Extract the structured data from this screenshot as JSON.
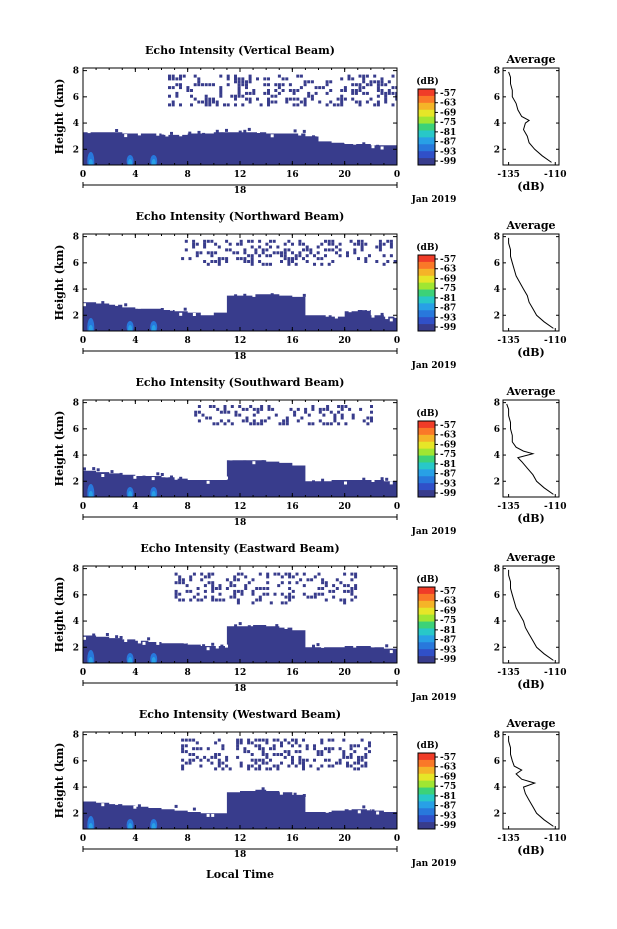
{
  "figure": {
    "date_label": "Jan 2019",
    "xlabel": "Local Time"
  },
  "colorbar": {
    "unit": "(dB)",
    "ticks": [
      "-57",
      "-63",
      "-69",
      "-75",
      "-81",
      "-87",
      "-93",
      "-99"
    ],
    "colors": [
      "#f03c28",
      "#fa7828",
      "#f5b428",
      "#e6e628",
      "#a0e632",
      "#3cd278",
      "#28c8c8",
      "#28a0e6",
      "#2878dc",
      "#3050c8",
      "#383c8c"
    ]
  },
  "chart_data": [
    {
      "type": "heatmap",
      "title": "Echo Intensity (Vertical Beam)",
      "ylabel": "Height (km)",
      "xticks": [
        "0",
        "4",
        "8",
        "12",
        "16",
        "20",
        "0"
      ],
      "xlim": [
        0,
        24
      ],
      "ylim": [
        0.8,
        8.2
      ],
      "yticks": [
        "2",
        "4",
        "6",
        "8"
      ],
      "day_label": "18",
      "layer_top_km": [
        3.3,
        3.3,
        3.3,
        3.2,
        3.2,
        3.2,
        3.1,
        3.1,
        3.2,
        3.2,
        3.3,
        3.3,
        3.3,
        3.3,
        3.2,
        3.2,
        3.2,
        3.0,
        2.6,
        2.5,
        2.4,
        2.4,
        2.3,
        2.3,
        2.3
      ],
      "upper_cloud": {
        "from_hour": 6.5,
        "to_hour": 24,
        "bottom_km": 5.5,
        "top_km": 7.9
      },
      "avg_profile": {
        "title": "Average",
        "xlabel": "(dB)",
        "xticks": [
          "-135",
          "-110"
        ],
        "xlim": [
          -138,
          -108
        ],
        "ylim": [
          0.8,
          8.2
        ],
        "yticks": [
          "2",
          "4",
          "6",
          "8"
        ],
        "heights_km": [
          1.0,
          1.5,
          2.0,
          2.5,
          3.0,
          3.5,
          4.0,
          4.2,
          4.5,
          5.0,
          5.5,
          6.0,
          6.5,
          7.0,
          7.5,
          7.9
        ],
        "values_db": [
          -112,
          -117,
          -121,
          -124,
          -125,
          -127,
          -126,
          -124,
          -128,
          -130,
          -131,
          -133,
          -133,
          -134,
          -134,
          -135
        ]
      }
    },
    {
      "type": "heatmap",
      "title": "Echo Intensity (Northward Beam)",
      "ylabel": "Height (km)",
      "xticks": [
        "0",
        "4",
        "8",
        "12",
        "16",
        "20",
        "0"
      ],
      "xlim": [
        0,
        24
      ],
      "ylim": [
        0.8,
        8.2
      ],
      "yticks": [
        "2",
        "4",
        "6",
        "8"
      ],
      "day_label": "18",
      "layer_top_km": [
        3.0,
        2.9,
        2.8,
        2.6,
        2.5,
        2.5,
        2.4,
        2.3,
        2.2,
        2.0,
        2.2,
        3.5,
        3.5,
        3.6,
        3.6,
        3.5,
        3.4,
        2.0,
        2.0,
        1.9,
        2.3,
        2.4,
        2.0,
        1.9,
        1.9
      ],
      "upper_cloud": {
        "from_hour": 7.5,
        "to_hour": 24,
        "bottom_km": 6.0,
        "top_km": 7.9
      },
      "avg_profile": {
        "title": "Average",
        "xlabel": "(dB)",
        "xticks": [
          "-135",
          "-110"
        ],
        "xlim": [
          -138,
          -108
        ],
        "ylim": [
          0.8,
          8.2
        ],
        "yticks": [
          "2",
          "4",
          "6",
          "8"
        ],
        "heights_km": [
          1.0,
          1.5,
          2.0,
          2.5,
          3.0,
          3.5,
          4.0,
          4.5,
          5.0,
          5.5,
          6.0,
          6.5,
          7.0,
          7.5,
          7.9
        ],
        "values_db": [
          -111,
          -116,
          -120,
          -122,
          -124,
          -125,
          -127,
          -129,
          -131,
          -132,
          -133,
          -134,
          -134,
          -135,
          -135
        ]
      }
    },
    {
      "type": "heatmap",
      "title": "Echo Intensity (Southward Beam)",
      "ylabel": "Height (km)",
      "xticks": [
        "0",
        "4",
        "8",
        "12",
        "16",
        "20",
        "0"
      ],
      "xlim": [
        0,
        24
      ],
      "ylim": [
        0.8,
        8.2
      ],
      "yticks": [
        "2",
        "4",
        "6",
        "8"
      ],
      "day_label": "18",
      "layer_top_km": [
        2.8,
        2.7,
        2.6,
        2.5,
        2.4,
        2.4,
        2.3,
        2.2,
        2.1,
        2.1,
        2.1,
        3.6,
        3.6,
        3.6,
        3.5,
        3.4,
        3.2,
        2.0,
        2.0,
        2.1,
        2.1,
        2.1,
        2.1,
        2.0,
        2.0
      ],
      "upper_cloud": {
        "from_hour": 8.5,
        "to_hour": 22,
        "bottom_km": 6.5,
        "top_km": 7.9
      },
      "avg_profile": {
        "title": "Average",
        "xlabel": "(dB)",
        "xticks": [
          "-135",
          "-110"
        ],
        "xlim": [
          -138,
          -108
        ],
        "ylim": [
          0.8,
          8.2
        ],
        "yticks": [
          "2",
          "4",
          "6",
          "8"
        ],
        "heights_km": [
          1.0,
          1.5,
          2.0,
          2.5,
          3.0,
          3.5,
          3.8,
          4.1,
          4.3,
          4.6,
          5.0,
          5.5,
          6.0,
          6.5,
          7.0,
          7.5,
          7.9
        ],
        "values_db": [
          -111,
          -116,
          -120,
          -122,
          -125,
          -128,
          -130,
          -122,
          -127,
          -131,
          -133,
          -133,
          -134,
          -134,
          -135,
          -135,
          -136
        ]
      }
    },
    {
      "type": "heatmap",
      "title": "Echo Intensity (Eastward Beam)",
      "ylabel": "Height (km)",
      "xticks": [
        "0",
        "4",
        "8",
        "12",
        "16",
        "20",
        "0"
      ],
      "xlim": [
        0,
        24
      ],
      "ylim": [
        0.8,
        8.2
      ],
      "yticks": [
        "2",
        "4",
        "6",
        "8"
      ],
      "day_label": "18",
      "layer_top_km": [
        2.9,
        2.8,
        2.7,
        2.6,
        2.5,
        2.4,
        2.3,
        2.3,
        2.2,
        2.1,
        2.1,
        3.6,
        3.6,
        3.7,
        3.6,
        3.5,
        3.3,
        2.0,
        2.0,
        2.0,
        2.1,
        2.1,
        2.0,
        1.9,
        1.9
      ],
      "upper_cloud": {
        "from_hour": 7.0,
        "to_hour": 21,
        "bottom_km": 5.5,
        "top_km": 7.9
      },
      "avg_profile": {
        "title": "Average",
        "xlabel": "(dB)",
        "xticks": [
          "-135",
          "-110"
        ],
        "xlim": [
          -138,
          -108
        ],
        "ylim": [
          0.8,
          8.2
        ],
        "yticks": [
          "2",
          "4",
          "6",
          "8"
        ],
        "heights_km": [
          1.0,
          1.5,
          2.0,
          2.5,
          3.0,
          3.5,
          4.0,
          4.5,
          5.0,
          5.5,
          6.0,
          6.5,
          7.0,
          7.5,
          7.9
        ],
        "values_db": [
          -111,
          -116,
          -120,
          -122,
          -124,
          -126,
          -127,
          -129,
          -131,
          -132,
          -133,
          -134,
          -134,
          -135,
          -135
        ]
      }
    },
    {
      "type": "heatmap",
      "title": "Echo Intensity (Westward Beam)",
      "ylabel": "Height (km)",
      "xticks": [
        "0",
        "4",
        "8",
        "12",
        "16",
        "20",
        "0"
      ],
      "xlim": [
        0,
        24
      ],
      "ylim": [
        0.8,
        8.2
      ],
      "yticks": [
        "2",
        "4",
        "6",
        "8"
      ],
      "day_label": "18",
      "layer_top_km": [
        2.9,
        2.8,
        2.7,
        2.6,
        2.5,
        2.4,
        2.3,
        2.2,
        2.1,
        2.0,
        2.0,
        3.6,
        3.7,
        3.8,
        3.7,
        3.6,
        3.4,
        2.1,
        2.1,
        2.2,
        2.3,
        2.3,
        2.2,
        2.1,
        2.0
      ],
      "upper_cloud": {
        "from_hour": 7.5,
        "to_hour": 22,
        "bottom_km": 5.5,
        "top_km": 7.9
      },
      "avg_profile": {
        "title": "Average",
        "xlabel": "(dB)",
        "xticks": [
          "-135",
          "-110"
        ],
        "xlim": [
          -138,
          -108
        ],
        "ylim": [
          0.8,
          8.2
        ],
        "yticks": [
          "2",
          "4",
          "6",
          "8"
        ],
        "heights_km": [
          1.0,
          1.5,
          2.0,
          2.5,
          3.0,
          3.5,
          4.0,
          4.3,
          4.6,
          5.0,
          5.3,
          5.6,
          6.0,
          6.5,
          7.0,
          7.5,
          7.9
        ],
        "values_db": [
          -111,
          -116,
          -120,
          -122,
          -124,
          -126,
          -127,
          -121,
          -128,
          -131,
          -128,
          -132,
          -133,
          -134,
          -134,
          -135,
          -135
        ]
      }
    }
  ]
}
